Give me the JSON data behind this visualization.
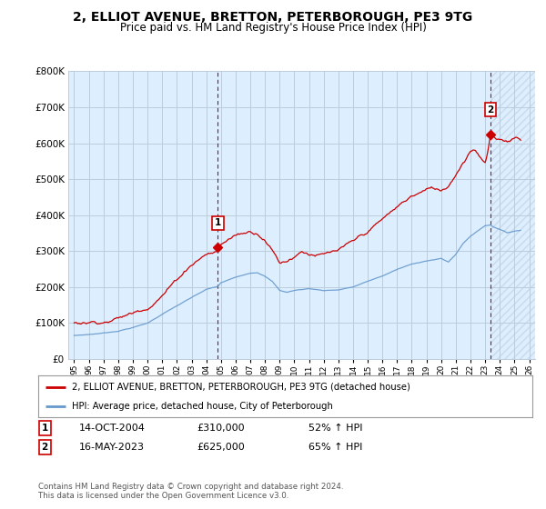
{
  "title": "2, ELLIOT AVENUE, BRETTON, PETERBOROUGH, PE3 9TG",
  "subtitle": "Price paid vs. HM Land Registry's House Price Index (HPI)",
  "ylim": [
    0,
    800000
  ],
  "yticks": [
    0,
    100000,
    200000,
    300000,
    400000,
    500000,
    600000,
    700000,
    800000
  ],
  "ytick_labels": [
    "£0",
    "£100K",
    "£200K",
    "£300K",
    "£400K",
    "£500K",
    "£600K",
    "£700K",
    "£800K"
  ],
  "sale1_date": 2004.79,
  "sale1_price": 310000,
  "sale1_label": "1",
  "sale2_date": 2023.37,
  "sale2_price": 625000,
  "sale2_label": "2",
  "legend_line1": "2, ELLIOT AVENUE, BRETTON, PETERBOROUGH, PE3 9TG (detached house)",
  "legend_line2": "HPI: Average price, detached house, City of Peterborough",
  "table_row1": [
    "1",
    "14-OCT-2004",
    "£310,000",
    "52% ↑ HPI"
  ],
  "table_row2": [
    "2",
    "16-MAY-2023",
    "£625,000",
    "65% ↑ HPI"
  ],
  "footnote": "Contains HM Land Registry data © Crown copyright and database right 2024.\nThis data is licensed under the Open Government Licence v3.0.",
  "line_color_red": "#cc0000",
  "line_color_blue": "#6699cc",
  "background_color": "#ffffff",
  "plot_bg_color": "#ddeeff",
  "grid_color": "#bbccdd",
  "vline_color": "#cc0000",
  "hatch_color": "#bbccdd",
  "title_fontsize": 10,
  "subtitle_fontsize": 8.5,
  "xlim_left": 1994.6,
  "xlim_right": 2026.4
}
